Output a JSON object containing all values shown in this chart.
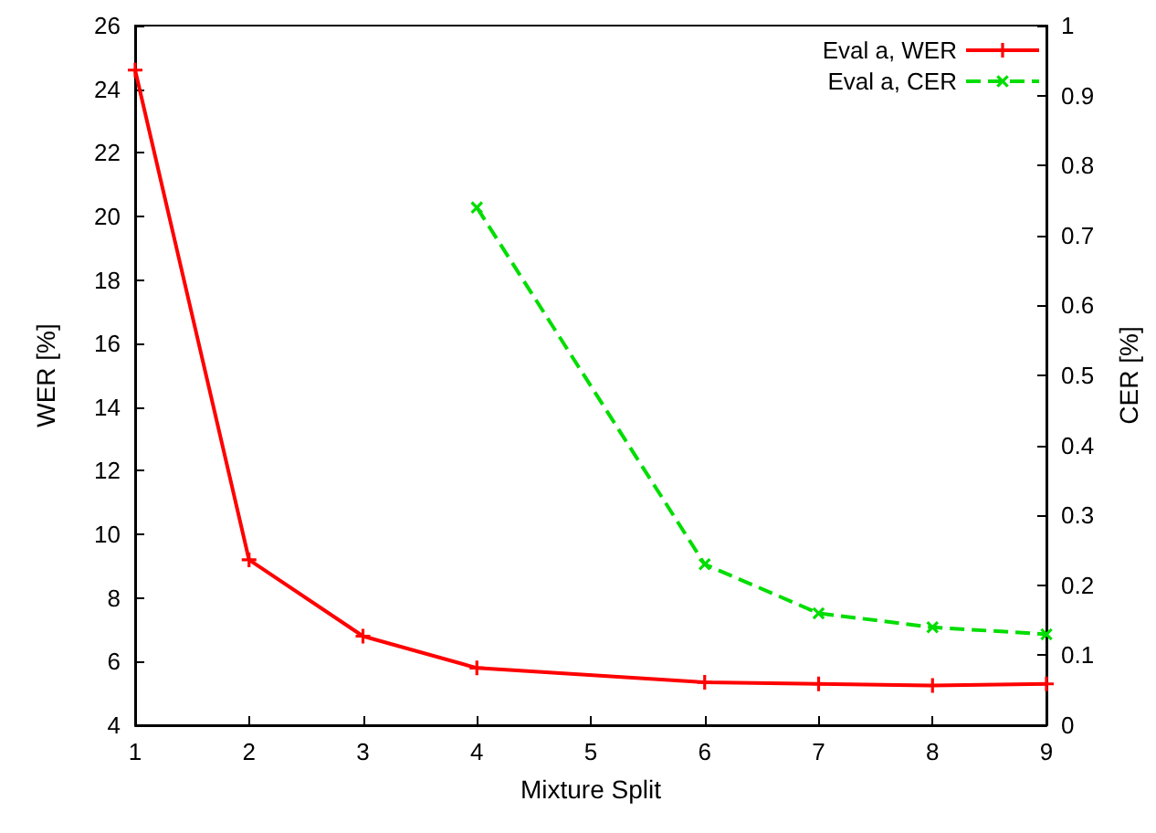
{
  "chart_data": {
    "type": "line",
    "xlabel": "Mixture Split",
    "ylabel": "WER [%]",
    "y2label": "CER [%]",
    "xlim": [
      1,
      9
    ],
    "xticks": [
      1,
      2,
      3,
      4,
      5,
      6,
      7,
      8,
      9
    ],
    "ylim": [
      4,
      26
    ],
    "yticks": [
      4,
      6,
      8,
      10,
      12,
      14,
      16,
      18,
      20,
      22,
      24,
      26
    ],
    "y2lim": [
      0,
      1
    ],
    "y2ticks": [
      0,
      0.1,
      0.2,
      0.3,
      0.4,
      0.5,
      0.6,
      0.7,
      0.8,
      0.9,
      1
    ],
    "grid": false,
    "legend": "top right",
    "series": [
      {
        "name": "Eval a, WER",
        "color": "#ff0000",
        "marker": "cross",
        "line_style": "solid",
        "x": [
          1,
          2,
          3,
          4,
          6,
          7,
          8,
          9
        ],
        "values": [
          24.6,
          9.2,
          6.8,
          5.8,
          5.35,
          5.3,
          5.25,
          5.3
        ]
      },
      {
        "name": "Eval a, CER",
        "color": "#00dd00",
        "marker": "x",
        "line_style": "dashed",
        "axis": "y2",
        "x": [
          4,
          6,
          7,
          8,
          9
        ],
        "values": [
          0.74,
          0.23,
          0.16,
          0.14,
          0.13
        ]
      }
    ]
  }
}
